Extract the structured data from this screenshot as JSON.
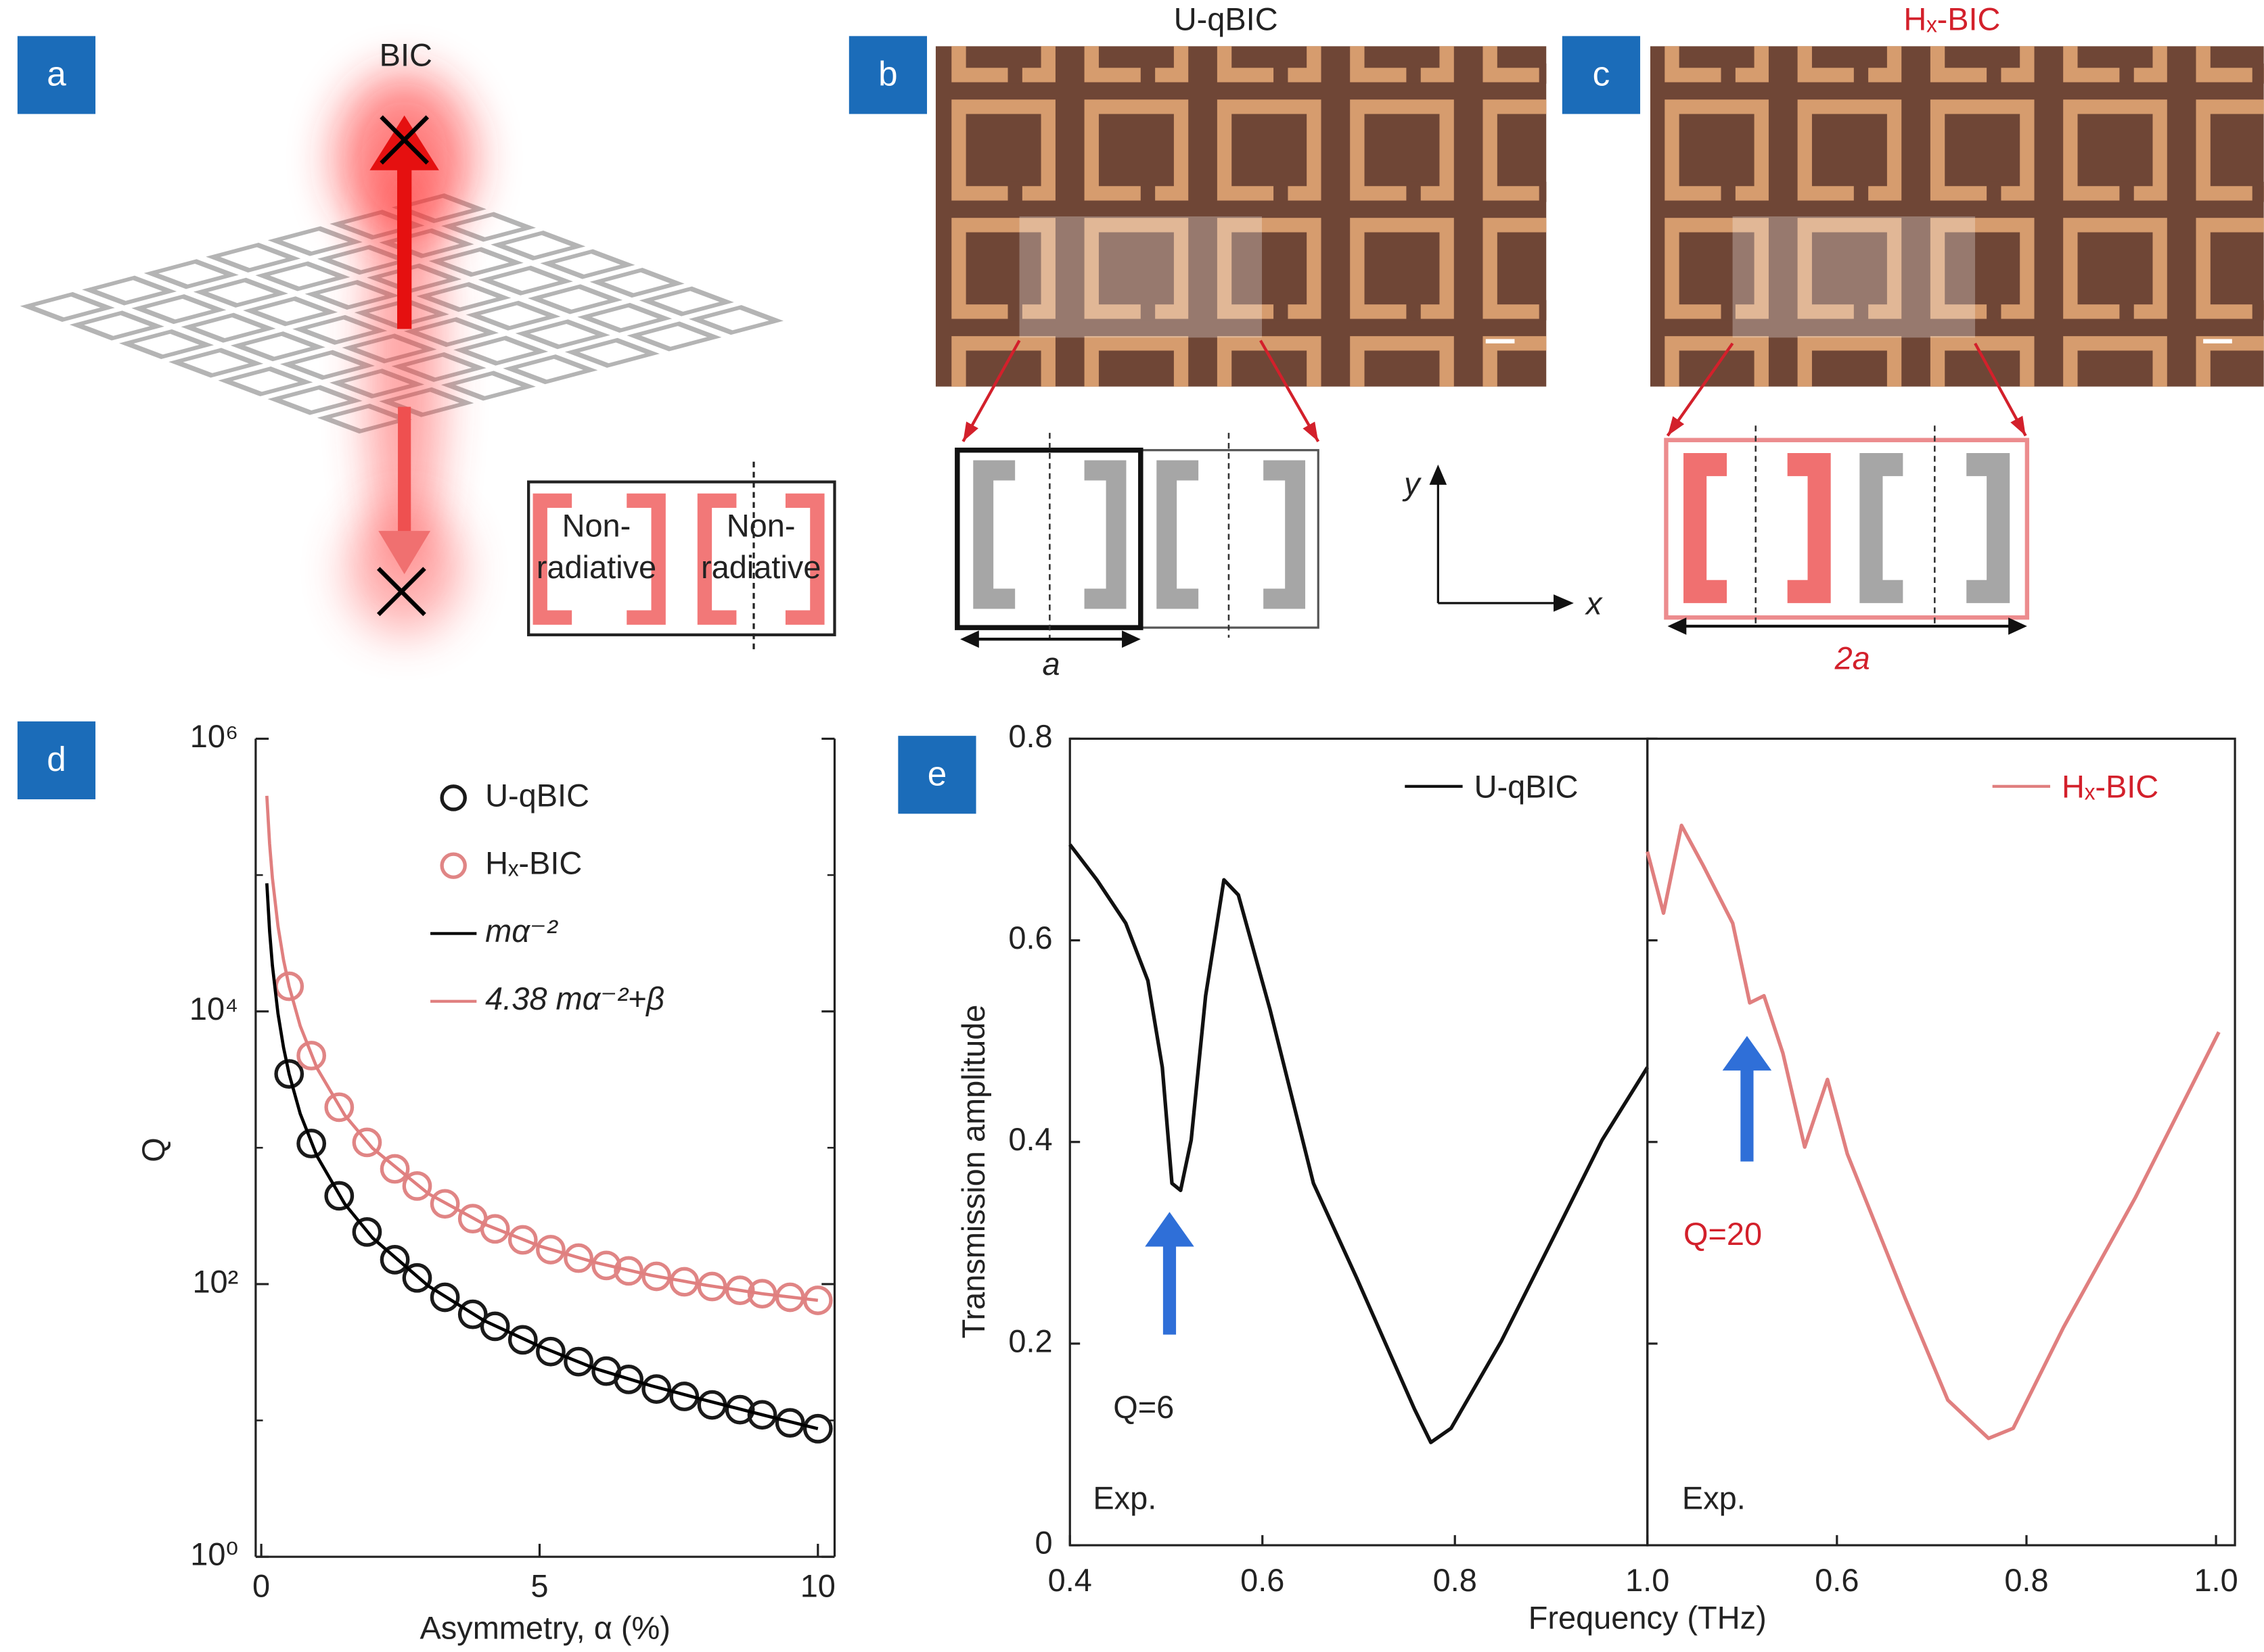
{
  "panel_labels": [
    "a",
    "b",
    "c",
    "d",
    "e"
  ],
  "panel_a": {
    "title": "BIC",
    "inset_labels": [
      [
        "Non-",
        "radiative"
      ],
      [
        "Non-",
        "radiative"
      ]
    ]
  },
  "panel_b": {
    "title": "U-qBIC",
    "period_label": "a"
  },
  "panel_c": {
    "title": "Hₓ-BIC",
    "period_label": "2a"
  },
  "axes_inset": {
    "y": "y",
    "x": "x"
  },
  "chart_data": [
    {
      "type": "scatter",
      "ylabel": "Q",
      "xlabel": "Asymmetry, α (%)",
      "log_y": true,
      "xlim": [
        -0.1,
        10.3
      ],
      "ylim": [
        1,
        1000000
      ],
      "xticks": [
        0,
        5,
        10
      ],
      "yticks": [
        {
          "value": 1,
          "label": "10⁰"
        },
        {
          "value": 100,
          "label": "10²"
        },
        {
          "value": 10000,
          "label": "10⁴"
        },
        {
          "value": 1000000,
          "label": "10⁶"
        }
      ],
      "yminorticks": [
        10,
        1000,
        100000
      ],
      "legend": "top-right",
      "series": [
        {
          "name": "U-qBIC",
          "kind": "scatter",
          "color": "#1a1a1a",
          "x": [
            0.5,
            0.9,
            1.4,
            1.9,
            2.4,
            2.8,
            3.3,
            3.8,
            4.2,
            4.7,
            5.2,
            5.7,
            6.2,
            6.6,
            7.1,
            7.6,
            8.1,
            8.6,
            9.0,
            9.5,
            10
          ],
          "values": [
            3480,
            1074,
            444,
            241,
            151,
            111,
            80,
            60,
            49,
            39,
            32,
            27,
            23,
            20,
            17,
            15,
            13,
            12,
            11,
            9.6,
            8.7
          ]
        },
        {
          "name": "Hₓ-BIC",
          "kind": "scatter",
          "color": "#e08585",
          "x": [
            0.5,
            0.9,
            1.4,
            1.9,
            2.4,
            2.8,
            3.3,
            3.8,
            4.2,
            4.7,
            5.2,
            5.7,
            6.2,
            6.6,
            7.1,
            7.6,
            8.1,
            8.6,
            9.0,
            9.5,
            10
          ],
          "values": [
            15282,
            4743,
            1982,
            1094,
            700,
            524,
            388,
            302,
            254,
            211,
            179,
            155,
            137,
            125,
            114,
            104,
            96,
            90,
            85,
            80,
            76
          ]
        },
        {
          "name": "mα⁻²",
          "kind": "line",
          "color": "#000000",
          "x": [
            0.1,
            0.15,
            0.2,
            0.3,
            0.4,
            0.5,
            0.7,
            1,
            1.5,
            2,
            3,
            4,
            5,
            6,
            7,
            8,
            9,
            10
          ],
          "values": [
            87000,
            38667,
            21750,
            9667,
            5438,
            3480,
            1776,
            870,
            387,
            218,
            97,
            54,
            35,
            24,
            18,
            14,
            11,
            8.7
          ]
        },
        {
          "name": "4.38 mα⁻²+β",
          "kind": "line",
          "color": "#e07f7f",
          "x": [
            0.1,
            0.15,
            0.2,
            0.3,
            0.4,
            0.5,
            0.7,
            1,
            1.5,
            2,
            3,
            4,
            5,
            6,
            7,
            8,
            9,
            10
          ],
          "values": [
            381138,
            169416,
            95313,
            42382,
            23857,
            15282,
            7816,
            3849,
            1732,
            991,
            461,
            276,
            190,
            144,
            116,
            98,
            85,
            76
          ]
        }
      ]
    },
    {
      "type": "line",
      "ylabel": "Transmission amplitude",
      "xlabel": "Frequency (THz)",
      "xlim": [
        0.4,
        1.0
      ],
      "ylim": [
        0,
        0.8
      ],
      "xticks": [
        0.4,
        0.6,
        0.8,
        {
          "value": 1,
          "label": "1.0"
        }
      ],
      "yticks": [
        0,
        0.2,
        0.4,
        0.6,
        0.8
      ],
      "legend": "top-right",
      "annotations": [
        "Q=6",
        "Exp."
      ],
      "series": [
        {
          "name": "U-qBIC",
          "color": "#111111",
          "x": [
            0.4,
            0.428,
            0.458,
            0.481,
            0.496,
            0.506,
            0.515,
            0.526,
            0.541,
            0.56,
            0.575,
            0.608,
            0.653,
            0.698,
            0.728,
            0.758,
            0.775,
            0.796,
            0.848,
            0.908,
            0.953,
            1.0
          ],
          "values": [
            0.695,
            0.66,
            0.617,
            0.56,
            0.474,
            0.359,
            0.352,
            0.402,
            0.545,
            0.66,
            0.645,
            0.531,
            0.359,
            0.265,
            0.2,
            0.135,
            0.102,
            0.116,
            0.202,
            0.316,
            0.402,
            0.474
          ]
        }
      ]
    },
    {
      "type": "line",
      "xlim": [
        0.4,
        1.02
      ],
      "ylim": [
        0,
        0.8
      ],
      "xticks": [
        0.6,
        0.8,
        {
          "value": 1,
          "label": "1.0"
        }
      ],
      "ytick_marks": [
        0.2,
        0.4,
        0.6,
        0.8
      ],
      "legend": "top-right",
      "annotations": [
        "Q=20",
        "Exp."
      ],
      "series": [
        {
          "name": "Hₓ-BIC",
          "color": "#e07f7f",
          "x": [
            0.4,
            0.417,
            0.436,
            0.459,
            0.49,
            0.508,
            0.523,
            0.543,
            0.566,
            0.59,
            0.611,
            0.672,
            0.717,
            0.76,
            0.786,
            0.839,
            0.915,
            1.003
          ],
          "values": [
            0.688,
            0.627,
            0.714,
            0.674,
            0.617,
            0.538,
            0.545,
            0.488,
            0.395,
            0.462,
            0.388,
            0.245,
            0.144,
            0.106,
            0.116,
            0.216,
            0.345,
            0.509
          ]
        }
      ]
    }
  ]
}
